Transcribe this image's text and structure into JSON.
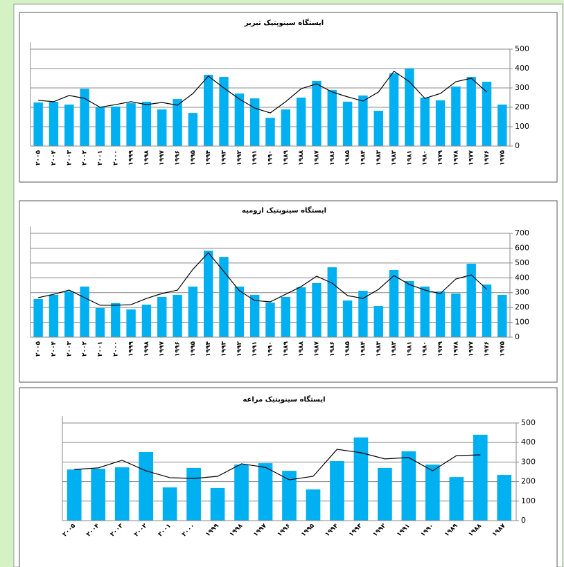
{
  "chart_data": [
    {
      "type": "bar",
      "title": "ایستگاه سینوپتیک تبریز",
      "categories": [
        "۲۰۰۵",
        "۲۰۰۴",
        "۲۰۰۳",
        "۲۰۰۲",
        "۲۰۰۱",
        "۲۰۰۰",
        "۱۹۹۹",
        "۱۹۹۸",
        "۱۹۹۷",
        "۱۹۹۶",
        "۱۹۹۵",
        "۱۹۹۴",
        "۱۹۹۳",
        "۱۹۹۲",
        "۱۹۹۱",
        "۱۹۹۰",
        "۱۹۸۹",
        "۱۹۸۸",
        "۱۹۸۷",
        "۱۹۸۶",
        "۱۹۸۵",
        "۱۹۸۴",
        "۱۹۸۳",
        "۱۹۸۲",
        "۱۹۸۱",
        "۱۹۸۰",
        "۱۹۷۹",
        "۱۹۷۸",
        "۱۹۷۷",
        "۱۹۷۶",
        "۱۹۷۵"
      ],
      "series": [
        {
          "type": "bar",
          "color": "#00b0f0",
          "values": [
            225,
            228,
            214,
            296,
            200,
            204,
            221,
            229,
            189,
            243,
            171,
            368,
            357,
            271,
            246,
            146,
            189,
            250,
            336,
            289,
            229,
            261,
            182,
            375,
            400,
            250,
            236,
            307,
            357,
            332,
            214
          ]
        },
        {
          "type": "line",
          "color": "#000000",
          "values": [
            236,
            229,
            261,
            246,
            200,
            214,
            229,
            214,
            225,
            211,
            271,
            361,
            300,
            243,
            196,
            171,
            229,
            296,
            321,
            279,
            254,
            232,
            279,
            386,
            332,
            246,
            271,
            332,
            350,
            279,
            null
          ]
        }
      ],
      "ylim": [
        0,
        500
      ],
      "yticks": [
        0,
        100,
        200,
        300,
        400,
        500
      ],
      "grid": true
    },
    {
      "type": "bar",
      "title": "ایستگاه سینوپتیک ارومیه",
      "categories": [
        "۲۰۰۵",
        "۲۰۰۴",
        "۲۰۰۳",
        "۲۰۰۲",
        "۲۰۰۱",
        "۲۰۰۰",
        "۱۹۹۹",
        "۱۹۹۸",
        "۱۹۹۷",
        "۱۹۹۶",
        "۱۹۹۵",
        "۱۹۹۴",
        "۱۹۹۳",
        "۱۹۹۲",
        "۱۹۹۱",
        "۱۹۹۰",
        "۱۹۸۹",
        "۱۹۸۸",
        "۱۹۸۷",
        "۱۹۸۶",
        "۱۹۸۵",
        "۱۹۸۴",
        "۱۹۸۳",
        "۱۹۸۲",
        "۱۹۸۱",
        "۱۹۸۰",
        "۱۹۷۹",
        "۱۹۷۸",
        "۱۹۷۷",
        "۱۹۷۶",
        "۱۹۷۵"
      ],
      "series": [
        {
          "type": "bar",
          "color": "#00b0f0",
          "values": [
            257,
            285,
            308,
            341,
            196,
            229,
            187,
            219,
            271,
            285,
            341,
            583,
            541,
            341,
            285,
            233,
            271,
            336,
            364,
            471,
            247,
            313,
            210,
            453,
            378,
            341,
            308,
            294,
            495,
            355,
            285
          ]
        },
        {
          "type": "line",
          "color": "#000000",
          "values": [
            266,
            289,
            317,
            266,
            215,
            215,
            219,
            261,
            294,
            317,
            457,
            569,
            443,
            313,
            247,
            238,
            289,
            341,
            411,
            364,
            280,
            261,
            322,
            415,
            355,
            317,
            294,
            392,
            420,
            322,
            null
          ]
        }
      ],
      "ylim": [
        0,
        700
      ],
      "yticks": [
        0,
        100,
        200,
        300,
        400,
        500,
        600,
        700
      ],
      "grid": true
    },
    {
      "type": "bar",
      "title": "ایستگاه سینوپتیک مراغه",
      "categories": [
        "۲۰۰۵",
        "۲۰۰۴",
        "۲۰۰۳",
        "۲۰۰۲",
        "۲۰۰۱",
        "۲۰۰۰",
        "۱۹۹۹",
        "۱۹۹۸",
        "۱۹۹۷",
        "۱۹۹۶",
        "۱۹۹۵",
        "۱۹۹۴",
        "۱۹۹۳",
        "۱۹۹۲",
        "۱۹۹۱",
        "۱۹۹۰",
        "۱۹۸۹",
        "۱۹۸۸",
        "۱۹۸۷"
      ],
      "series": [
        {
          "type": "bar",
          "color": "#00b0f0",
          "values": [
            262,
            266,
            273,
            351,
            170,
            270,
            167,
            287,
            294,
            255,
            160,
            305,
            426,
            270,
            355,
            287,
            223,
            440,
            234
          ]
        },
        {
          "type": "line",
          "color": "#000000",
          "values": [
            262,
            270,
            309,
            255,
            220,
            216,
            227,
            291,
            273,
            209,
            227,
            365,
            348,
            316,
            323,
            255,
            333,
            337,
            null
          ]
        }
      ],
      "ylim": [
        0,
        500
      ],
      "yticks": [
        0,
        100,
        200,
        300,
        400,
        500
      ],
      "grid": true
    }
  ]
}
